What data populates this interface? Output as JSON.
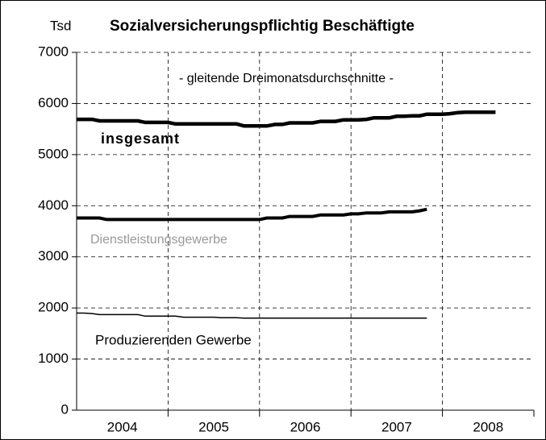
{
  "chart_data": {
    "type": "line",
    "unit_label": "Tsd",
    "title": "Sozialversicherungspflichtig Beschäftigte",
    "subtitle": "- gleitende Dreimonatsdurchschnitte -",
    "x": [
      2004.0,
      2004.08,
      2004.17,
      2004.25,
      2004.33,
      2004.42,
      2004.5,
      2004.58,
      2004.67,
      2004.75,
      2004.83,
      2004.92,
      2005.0,
      2005.08,
      2005.17,
      2005.25,
      2005.33,
      2005.42,
      2005.5,
      2005.58,
      2005.67,
      2005.75,
      2005.83,
      2005.92,
      2006.0,
      2006.08,
      2006.17,
      2006.25,
      2006.33,
      2006.42,
      2006.5,
      2006.58,
      2006.67,
      2006.75,
      2006.83,
      2006.92,
      2007.0,
      2007.08,
      2007.17,
      2007.25,
      2007.33,
      2007.42,
      2007.5,
      2007.58,
      2007.67,
      2007.75,
      2007.83,
      2007.92,
      2008.0,
      2008.08,
      2008.17,
      2008.25,
      2008.33,
      2008.42,
      2008.5,
      2008.58
    ],
    "series": [
      {
        "name": "insgesamt",
        "color": "#000000",
        "values": [
          5690,
          5690,
          5690,
          5660,
          5660,
          5660,
          5660,
          5660,
          5660,
          5630,
          5630,
          5630,
          5630,
          5600,
          5600,
          5600,
          5600,
          5600,
          5600,
          5600,
          5600,
          5600,
          5560,
          5560,
          5560,
          5560,
          5590,
          5590,
          5620,
          5620,
          5620,
          5620,
          5650,
          5650,
          5650,
          5680,
          5680,
          5680,
          5690,
          5720,
          5720,
          5720,
          5750,
          5750,
          5760,
          5760,
          5790,
          5790,
          5790,
          5800,
          5820,
          5830,
          5830,
          5830,
          5830,
          5830
        ]
      },
      {
        "name": "Dienstleistungsgewerbe",
        "color": "#000000",
        "values": [
          3760,
          3760,
          3760,
          3760,
          3730,
          3730,
          3730,
          3730,
          3730,
          3730,
          3730,
          3730,
          3730,
          3730,
          3730,
          3730,
          3730,
          3730,
          3730,
          3730,
          3730,
          3730,
          3730,
          3730,
          3730,
          3760,
          3760,
          3760,
          3790,
          3790,
          3790,
          3790,
          3820,
          3820,
          3820,
          3820,
          3840,
          3840,
          3860,
          3860,
          3860,
          3880,
          3880,
          3880,
          3880,
          3900,
          3930,
          null,
          null,
          null,
          null,
          null,
          null,
          null,
          null,
          null
        ]
      },
      {
        "name": "Produzierenden Gewerbe",
        "color": "#000000",
        "values": [
          1900,
          1900,
          1890,
          1870,
          1870,
          1870,
          1870,
          1870,
          1870,
          1840,
          1840,
          1840,
          1840,
          1840,
          1820,
          1820,
          1820,
          1820,
          1820,
          1810,
          1810,
          1810,
          1800,
          1800,
          1800,
          1800,
          1800,
          1800,
          1800,
          1800,
          1800,
          1800,
          1800,
          1800,
          1800,
          1800,
          1800,
          1800,
          1800,
          1800,
          1800,
          1800,
          1800,
          1800,
          1800,
          1800,
          1800,
          null,
          null,
          null,
          null,
          null,
          null,
          null,
          null,
          null
        ]
      }
    ],
    "xlim": [
      2004,
      2009
    ],
    "xticks": [
      {
        "value": 2004.5,
        "label": "2004"
      },
      {
        "value": 2005.5,
        "label": "2005"
      },
      {
        "value": 2006.5,
        "label": "2006"
      },
      {
        "value": 2007.5,
        "label": "2007"
      },
      {
        "value": 2008.5,
        "label": "2008"
      }
    ],
    "xgrid": [
      2005,
      2006,
      2007,
      2008,
      2009
    ],
    "ylim": [
      0,
      7000
    ],
    "yticks": [
      0,
      1000,
      2000,
      3000,
      4000,
      5000,
      6000,
      7000
    ],
    "grid": true
  }
}
